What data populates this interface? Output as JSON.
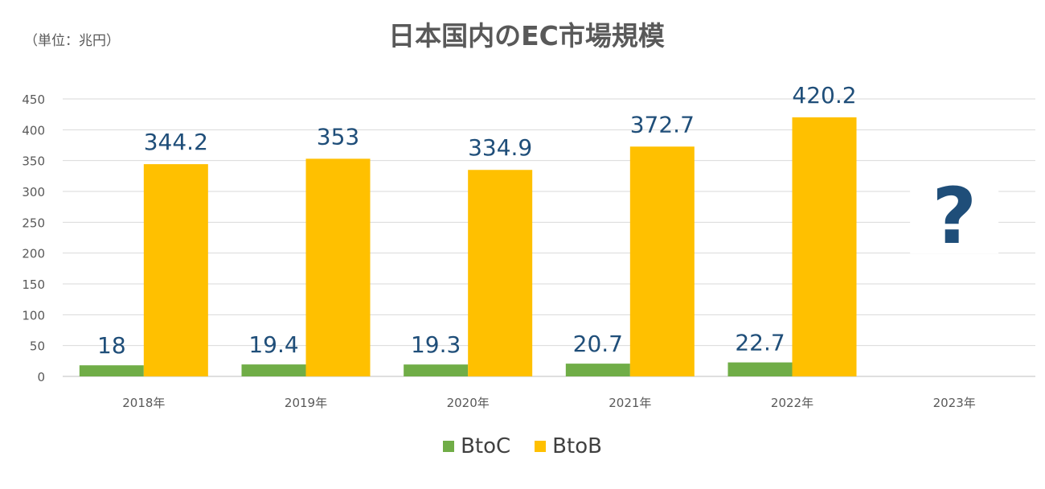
{
  "unit_label": "（単位：兆円）",
  "chart_data": {
    "type": "bar",
    "title": "日本国内のEC市場規模",
    "categories": [
      "2018年",
      "2019年",
      "2020年",
      "2021年",
      "2022年",
      "2023年"
    ],
    "series": [
      {
        "name": "BtoC",
        "color": "#70AD47",
        "values": [
          18,
          19.4,
          19.3,
          20.7,
          22.7,
          null
        ],
        "labels": [
          "18",
          "19.4",
          "19.3",
          "20.7",
          "22.7",
          ""
        ]
      },
      {
        "name": "BtoB",
        "color": "#FFC000",
        "values": [
          344.2,
          353,
          334.9,
          372.7,
          420.2,
          null
        ],
        "labels": [
          "344.2",
          "353",
          "334.9",
          "372.7",
          "420.2",
          ""
        ]
      }
    ],
    "ylim": [
      0,
      450
    ],
    "yticks": [
      0,
      50,
      100,
      150,
      200,
      250,
      300,
      350,
      400,
      450
    ],
    "grid": true,
    "legend_position": "bottom",
    "annotation": {
      "text": "?",
      "category": "2023年",
      "color": "#1F4E79"
    }
  },
  "colors": {
    "data_label": "#1F4E79",
    "grid": "#D9D9D9",
    "axis_text": "#595959"
  }
}
